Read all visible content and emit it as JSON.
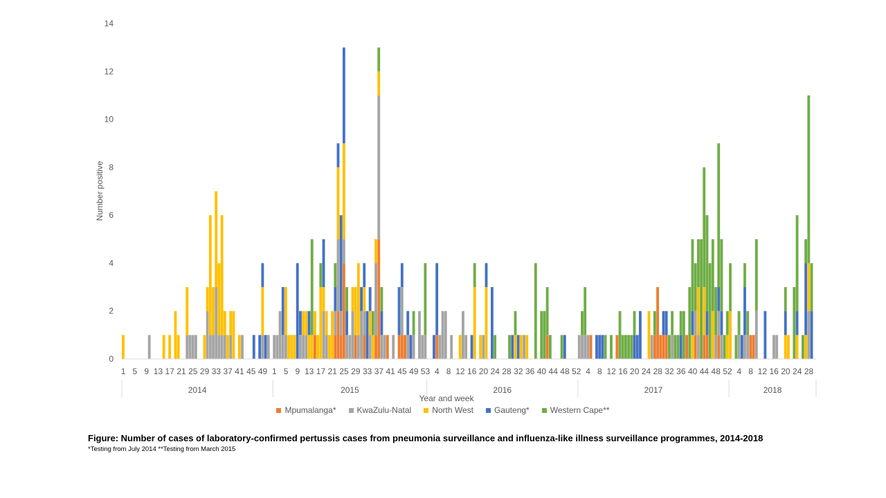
{
  "chart_data": {
    "type": "bar",
    "stacked": true,
    "title": "",
    "xlabel": "Year and week",
    "ylabel": "Number positive",
    "ylim": [
      0,
      14
    ],
    "ytick_step": 2,
    "grid": false,
    "legend_position": "bottom",
    "years": [
      {
        "label": "2014",
        "weeks": 52,
        "tick_labels": [
          "1",
          "5",
          "9",
          "13",
          "17",
          "21",
          "25",
          "29",
          "33",
          "37",
          "41",
          "45",
          "49"
        ]
      },
      {
        "label": "2015",
        "weeks": 53,
        "tick_labels": [
          "1",
          "5",
          "9",
          "13",
          "17",
          "21",
          "25",
          "29",
          "33",
          "37",
          "41",
          "45",
          "49",
          "53"
        ]
      },
      {
        "label": "2016",
        "weeks": 52,
        "tick_labels": [
          "4",
          "8",
          "12",
          "16",
          "20",
          "24",
          "28",
          "32",
          "36",
          "40",
          "44",
          "48",
          "52"
        ]
      },
      {
        "label": "2017",
        "weeks": 52,
        "tick_labels": [
          "4",
          "8",
          "12",
          "16",
          "20",
          "24",
          "28",
          "32",
          "36",
          "40",
          "44",
          "48",
          "52"
        ]
      },
      {
        "label": "2018",
        "weeks": 30,
        "tick_labels": [
          "4",
          "8",
          "12",
          "16",
          "20",
          "24",
          "28"
        ]
      }
    ],
    "series": [
      {
        "name": "Mpumalanga*",
        "color": "#ED7D31",
        "values": {
          "2015": {
            "15": 1,
            "22": 1,
            "23": 2,
            "24": 1,
            "25": 4,
            "29": 1,
            "32": 1,
            "36": 1,
            "37": 5,
            "40": 1,
            "44": 1,
            "45": 1,
            "46": 1
          },
          "2016": {
            "4": 1,
            "42": 1
          },
          "2017": {
            "5": 1,
            "14": 1,
            "27": 1,
            "28": 3,
            "29": 1,
            "30": 1,
            "31": 1,
            "38": 1,
            "41": 1,
            "44": 1,
            "45": 1,
            "49": 1
          },
          "2018": {
            "8": 1,
            "9": 1
          }
        }
      },
      {
        "name": "KwaZulu-Natal",
        "color": "#A5A5A5",
        "values": {
          "2014": {
            "10": 1,
            "23": 1,
            "24": 1,
            "25": 1,
            "26": 1,
            "30": 2,
            "31": 1,
            "32": 1,
            "33": 3,
            "34": 1,
            "35": 1,
            "36": 1,
            "38": 1,
            "42": 1,
            "49": 1,
            "51": 1
          },
          "2015": {
            "1": 1,
            "2": 1,
            "3": 2,
            "4": 1,
            "5": 1,
            "10": 1,
            "11": 1,
            "12": 1,
            "18": 2,
            "19": 1,
            "22": 1,
            "23": 3,
            "24": 1,
            "25": 1,
            "26": 1,
            "27": 1,
            "28": 2,
            "30": 1,
            "31": 2,
            "32": 1,
            "34": 1,
            "36": 3,
            "37": 6,
            "38": 1,
            "39": 1,
            "42": 1,
            "45": 2,
            "47": 1,
            "49": 1,
            "51": 2,
            "52": 1,
            "53": 1
          },
          "2016": {
            "5": 1,
            "6": 2,
            "7": 2,
            "9": 1,
            "13": 2,
            "14": 1,
            "20": 1,
            "34": 1
          },
          "2017": {
            "1": 1,
            "2": 1,
            "3": 1,
            "4": 1,
            "26": 1,
            "33": 1,
            "41": 1,
            "42": 1,
            "48": 1,
            "49": 1,
            "50": 1
          },
          "2018": {
            "4": 1,
            "6": 1,
            "7": 1,
            "10": 2,
            "16": 1,
            "17": 1,
            "28": 2
          }
        }
      },
      {
        "name": "North West",
        "color": "#FFC000",
        "values": {
          "2014": {
            "1": 1,
            "15": 1,
            "17": 1,
            "19": 2,
            "20": 1,
            "23": 2,
            "29": 1,
            "30": 1,
            "31": 5,
            "32": 2,
            "33": 4,
            "34": 3,
            "35": 5,
            "36": 1,
            "37": 1,
            "38": 1,
            "39": 2,
            "41": 1,
            "49": 2
          },
          "2015": {
            "5": 2,
            "6": 1,
            "7": 1,
            "8": 1,
            "11": 1,
            "12": 1,
            "13": 1,
            "14": 1,
            "15": 1,
            "16": 1,
            "17": 3,
            "18": 1,
            "19": 1,
            "20": 1,
            "21": 2,
            "23": 3,
            "25": 4,
            "28": 1,
            "29": 2,
            "30": 3,
            "32": 1,
            "34": 1,
            "35": 1,
            "36": 1,
            "37": 1
          },
          "2016": {
            "12": 1,
            "17": 3,
            "19": 1,
            "21": 3,
            "31": 1,
            "33": 1,
            "35": 1
          },
          "2017": {
            "25": 2,
            "40": 1,
            "42": 2,
            "44": 2,
            "47": 2,
            "52": 1
          },
          "2018": {
            "1": 2,
            "20": 1,
            "21": 1,
            "24": 1,
            "27": 1,
            "28": 2
          }
        }
      },
      {
        "name": "Gauteng*",
        "color": "#4472C4",
        "values": {
          "2014": {
            "46": 1,
            "48": 1,
            "49": 1,
            "50": 1
          },
          "2015": {
            "4": 2,
            "9": 4,
            "10": 1,
            "13": 1,
            "18": 2,
            "22": 1,
            "23": 1,
            "24": 4,
            "25": 4,
            "26": 1,
            "31": 1,
            "32": 1,
            "33": 2,
            "34": 1,
            "38": 1,
            "44": 2,
            "45": 1,
            "47": 1,
            "48": 1
          },
          "2016": {
            "3": 1,
            "4": 3,
            "16": 1,
            "21": 1,
            "23": 3,
            "30": 1,
            "32": 1,
            "48": 1
          },
          "2017": {
            "7": 1,
            "8": 1,
            "9": 1,
            "20": 1,
            "21": 1,
            "22": 2,
            "30": 1,
            "31": 1,
            "36": 1,
            "40": 1,
            "45": 1,
            "49": 1,
            "50": 1
          },
          "2018": {
            "5": 1,
            "6": 2,
            "13": 2,
            "20": 1,
            "24": 1,
            "27": 3,
            "29": 2
          }
        }
      },
      {
        "name": "Western Cape**",
        "color": "#70AD47",
        "values": {
          "2015": {
            "14": 4,
            "17": 1,
            "22": 1,
            "26": 1,
            "35": 1,
            "37": 1,
            "38": 1,
            "49": 1,
            "53": 3
          },
          "2016": {
            "17": 1,
            "24": 1,
            "29": 1,
            "31": 1,
            "38": 4,
            "40": 2,
            "41": 2,
            "42": 2,
            "43": 1,
            "47": 1
          },
          "2017": {
            "2": 1,
            "3": 2,
            "10": 1,
            "12": 1,
            "15": 2,
            "16": 1,
            "17": 1,
            "18": 1,
            "19": 1,
            "20": 1,
            "27": 1,
            "32": 1,
            "33": 1,
            "34": 1,
            "35": 1,
            "36": 1,
            "37": 2,
            "39": 3,
            "40": 3,
            "41": 2,
            "42": 2,
            "43": 5,
            "44": 5,
            "45": 4,
            "46": 4,
            "47": 3,
            "48": 2,
            "49": 6,
            "50": 3,
            "51": 1,
            "52": 1
          },
          "2018": {
            "1": 2,
            "3": 1,
            "4": 1,
            "6": 1,
            "7": 1,
            "10": 3,
            "20": 1,
            "23": 3,
            "24": 4,
            "26": 1,
            "27": 1,
            "28": 7,
            "29": 2
          }
        }
      }
    ]
  },
  "caption": {
    "title": "Figure: Number of cases of laboratory-confirmed pertussis cases from pneumonia surveillance and influenza-like illness surveillance programmes, 2014-2018",
    "note": "*Testing from July 2014 **Testing from March 2015"
  }
}
